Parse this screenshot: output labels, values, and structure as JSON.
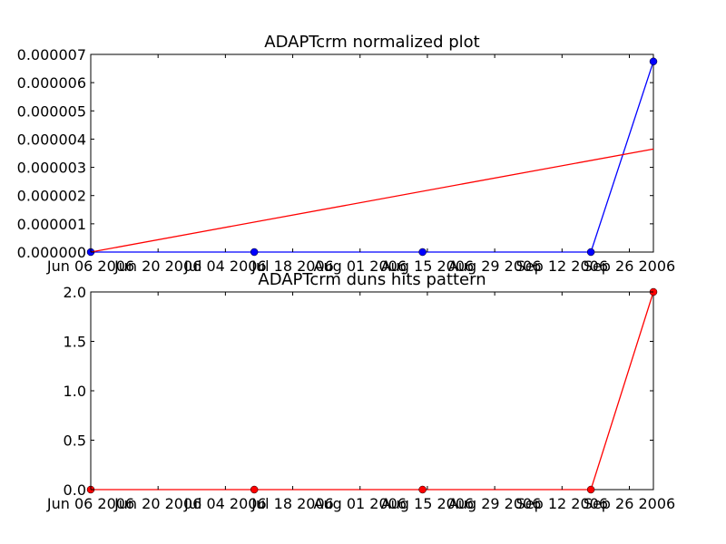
{
  "colors": {
    "blue_series": "#0000ff",
    "red_series": "#ff0000",
    "axes": "#000000"
  },
  "chart_data": [
    {
      "type": "line",
      "title": "ADAPTcrm normalized plot",
      "xlabel": "",
      "ylabel": "",
      "grid": false,
      "xlim": [
        "2006-06-06",
        "2006-10-01"
      ],
      "ylim": [
        0,
        7e-06
      ],
      "x_ticks": [
        {
          "date": "2006-06-06",
          "label": "Jun 06 2006"
        },
        {
          "date": "2006-06-20",
          "label": "Jun 20 2006"
        },
        {
          "date": "2006-07-04",
          "label": "Jul 04 2006"
        },
        {
          "date": "2006-07-18",
          "label": "Jul 18 2006"
        },
        {
          "date": "2006-08-01",
          "label": "Aug 01 2006"
        },
        {
          "date": "2006-08-15",
          "label": "Aug 15 2006"
        },
        {
          "date": "2006-08-29",
          "label": "Aug 29 2006"
        },
        {
          "date": "2006-09-12",
          "label": "Sep 12 2006"
        },
        {
          "date": "2006-09-26",
          "label": "Sep 26 2006"
        }
      ],
      "y_ticks": [
        {
          "value": 0,
          "label": "0.000000"
        },
        {
          "value": 1e-06,
          "label": "0.000001"
        },
        {
          "value": 2e-06,
          "label": "0.000002"
        },
        {
          "value": 3e-06,
          "label": "0.000003"
        },
        {
          "value": 4e-06,
          "label": "0.000004"
        },
        {
          "value": 5e-06,
          "label": "0.000005"
        },
        {
          "value": 6e-06,
          "label": "0.000006"
        },
        {
          "value": 7e-06,
          "label": "0.000007"
        }
      ],
      "series": [
        {
          "color": "#0000ff",
          "markers": true,
          "points": [
            {
              "x": "2006-06-06",
              "y": 0
            },
            {
              "x": "2006-07-10",
              "y": 0
            },
            {
              "x": "2006-08-14",
              "y": 0
            },
            {
              "x": "2006-09-18",
              "y": 0
            },
            {
              "x": "2006-10-01",
              "y": 6.75e-06
            }
          ]
        },
        {
          "color": "#ff0000",
          "markers": false,
          "points": [
            {
              "x": "2006-06-06",
              "y": 0
            },
            {
              "x": "2006-10-01",
              "y": 3.65e-06
            }
          ]
        }
      ]
    },
    {
      "type": "line",
      "title": "ADAPTcrm duns hits pattern",
      "xlabel": "",
      "ylabel": "",
      "grid": false,
      "xlim": [
        "2006-06-06",
        "2006-10-01"
      ],
      "ylim": [
        0,
        2.0
      ],
      "x_ticks": [
        {
          "date": "2006-06-06",
          "label": "Jun 06 2006"
        },
        {
          "date": "2006-06-20",
          "label": "Jun 20 2006"
        },
        {
          "date": "2006-07-04",
          "label": "Jul 04 2006"
        },
        {
          "date": "2006-07-18",
          "label": "Jul 18 2006"
        },
        {
          "date": "2006-08-01",
          "label": "Aug 01 2006"
        },
        {
          "date": "2006-08-15",
          "label": "Aug 15 2006"
        },
        {
          "date": "2006-08-29",
          "label": "Aug 29 2006"
        },
        {
          "date": "2006-09-12",
          "label": "Sep 12 2006"
        },
        {
          "date": "2006-09-26",
          "label": "Sep 26 2006"
        }
      ],
      "y_ticks": [
        {
          "value": 0,
          "label": "0.0"
        },
        {
          "value": 0.5,
          "label": "0.5"
        },
        {
          "value": 1.0,
          "label": "1.0"
        },
        {
          "value": 1.5,
          "label": "1.5"
        },
        {
          "value": 2.0,
          "label": "2.0"
        }
      ],
      "series": [
        {
          "color": "#ff0000",
          "markers": true,
          "points": [
            {
              "x": "2006-06-06",
              "y": 0
            },
            {
              "x": "2006-07-10",
              "y": 0
            },
            {
              "x": "2006-08-14",
              "y": 0
            },
            {
              "x": "2006-09-18",
              "y": 0
            },
            {
              "x": "2006-10-01",
              "y": 2.0
            }
          ]
        }
      ]
    }
  ]
}
